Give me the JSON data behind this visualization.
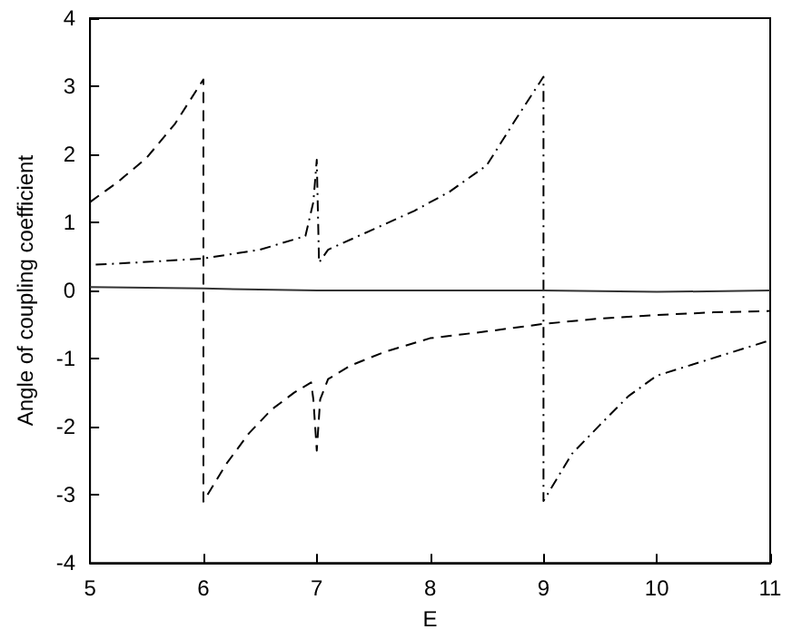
{
  "chart_data": {
    "type": "line",
    "xlabel": "E",
    "ylabel": "Angle of coupling coefficient",
    "xlim": [
      5,
      11
    ],
    "ylim": [
      -4,
      4
    ],
    "xticks": [
      5,
      6,
      7,
      8,
      9,
      10,
      11
    ],
    "yticks": [
      -4,
      -3,
      -2,
      -1,
      0,
      1,
      2,
      3,
      4
    ],
    "grid": false,
    "marker": "none",
    "series": [
      {
        "color": "#000000",
        "line_style": "dashed",
        "x": [
          5,
          5.25,
          5.5,
          5.75,
          6,
          6,
          6.2,
          6.4,
          6.6,
          6.8,
          6.95,
          6.97,
          7,
          7.03,
          7.1,
          7.3,
          7.6,
          8,
          8.5,
          9,
          9.5,
          10,
          10.5,
          11
        ],
        "values": [
          1.3,
          1.6,
          1.95,
          2.45,
          3.1,
          -3.1,
          -2.55,
          -2.1,
          -1.75,
          -1.5,
          -1.35,
          -1.6,
          -2.35,
          -1.6,
          -1.3,
          -1.1,
          -0.9,
          -0.7,
          -0.6,
          -0.49,
          -0.41,
          -0.36,
          -0.32,
          -0.3
        ]
      },
      {
        "color": "#000000",
        "line_style": "dotted",
        "x": [
          5.05,
          5.5,
          6,
          6.5,
          6.9,
          6.97,
          7,
          7.02,
          7.1,
          7.5,
          7.86,
          8.17,
          8.5,
          8.75,
          9,
          9,
          9.25,
          9.5,
          9.75,
          10,
          10.5,
          11
        ],
        "values": [
          0.38,
          0.42,
          0.47,
          0.6,
          0.8,
          1.3,
          1.92,
          0.41,
          0.6,
          0.9,
          1.17,
          1.45,
          1.84,
          2.5,
          3.14,
          -3.09,
          -2.4,
          -1.97,
          -1.55,
          -1.25,
          -0.99,
          -0.73
        ]
      },
      {
        "color": "#333333",
        "line_style": "solid",
        "x": [
          5,
          6,
          7,
          8,
          9,
          10,
          11
        ],
        "values": [
          0.05,
          0.03,
          0,
          0,
          0,
          -0.02,
          0
        ]
      }
    ]
  }
}
